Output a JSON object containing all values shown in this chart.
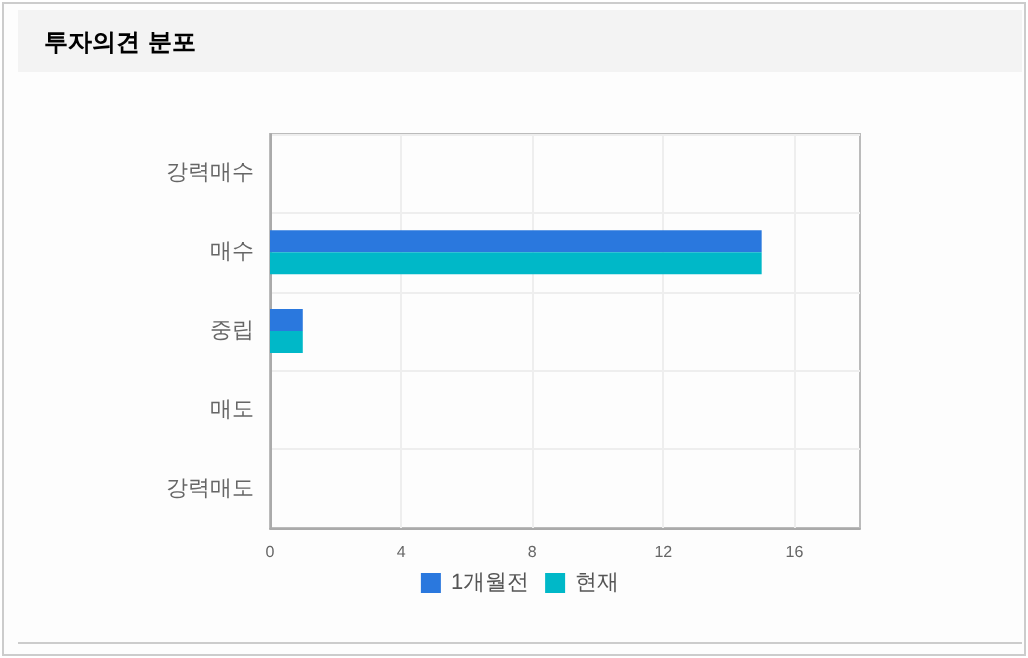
{
  "chart_data": {
    "type": "bar",
    "title": "투자의견 분포",
    "orientation": "horizontal",
    "categories": [
      "강력매수",
      "매수",
      "중립",
      "매도",
      "강력매도"
    ],
    "series": [
      {
        "name": "1개월전",
        "color": "#2a78de",
        "values": [
          0,
          15,
          1,
          0,
          0
        ]
      },
      {
        "name": "현재",
        "color": "#00b8c8",
        "values": [
          0,
          15,
          1,
          0,
          0
        ]
      }
    ],
    "xlim": [
      0,
      18
    ],
    "xticks": [
      0,
      4,
      8,
      12,
      16
    ],
    "grid": true,
    "legend": "bottom"
  }
}
